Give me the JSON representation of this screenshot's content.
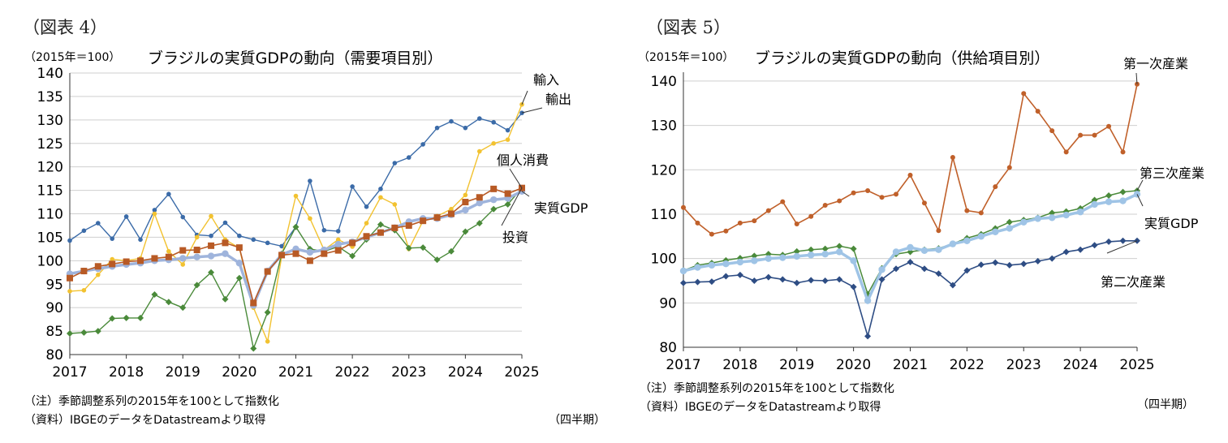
{
  "charts": [
    {
      "fig_label": "（図表 4）",
      "unit": "（2015年＝100）",
      "title": "ブラジルの実質GDPの動向（需要項目別）",
      "note1": "（注）季節調整系列の2015年を100として指数化",
      "note2": "（資料）IBGEのデータをDatastreamより取得",
      "period": "（四半期）"
    },
    {
      "fig_label": "（図表 5）",
      "unit": "（2015年＝100）",
      "title": "ブラジルの実質GDPの動向（供給項目別）",
      "note1": "（注）季節調整系列の2015年を100として指数化",
      "note2": "（資料）IBGEのデータをDatastreamより取得",
      "period": "（四半期）"
    }
  ],
  "chart_data": [
    {
      "type": "line",
      "title": "ブラジルの実質GDPの動向（需要項目別）",
      "ylabel": "（2015年＝100）",
      "xlabel": "（四半期）",
      "ylim": [
        80,
        140
      ],
      "yticks": [
        80,
        85,
        90,
        95,
        100,
        105,
        110,
        115,
        120,
        125,
        130,
        135,
        140
      ],
      "xtick_labels": [
        "2017",
        "2018",
        "2019",
        "2020",
        "2021",
        "2022",
        "2023",
        "2024",
        "2025"
      ],
      "series": [
        {
          "name": "輸出",
          "color": "#3b6ba8",
          "marker": "circle",
          "values": [
            104.3,
            106.4,
            108.0,
            104.7,
            109.4,
            104.5,
            110.8,
            114.2,
            109.3,
            105.5,
            105.3,
            108.1,
            105.3,
            104.5,
            103.8,
            103.1,
            107.2,
            117.0,
            106.5,
            106.3,
            115.8,
            111.5,
            115.3,
            120.8,
            122.0,
            124.8,
            128.3,
            129.7,
            128.3,
            130.3,
            129.5,
            127.8,
            131.5
          ]
        },
        {
          "name": "輸入",
          "color": "#f2c230",
          "marker": "circle",
          "values": [
            93.5,
            93.7,
            97.0,
            100.3,
            100.0,
            100.5,
            110.0,
            102.0,
            99.2,
            105.0,
            109.5,
            104.5,
            102.7,
            90.0,
            82.8,
            101.0,
            113.8,
            109.0,
            102.3,
            104.5,
            103.0,
            108.0,
            113.5,
            112.0,
            102.5,
            108.5,
            109.5,
            111.0,
            114.0,
            123.3,
            125.0,
            125.8,
            133.3
          ]
        },
        {
          "name": "投資",
          "color": "#4a8a3a",
          "marker": "diamond",
          "values": [
            84.5,
            84.7,
            85.0,
            87.7,
            87.8,
            87.8,
            92.8,
            91.2,
            90.0,
            94.8,
            97.5,
            91.8,
            96.3,
            81.3,
            89.0,
            101.5,
            107.2,
            102.5,
            102.0,
            103.0,
            101.0,
            104.5,
            107.7,
            106.5,
            102.7,
            102.8,
            100.2,
            102.0,
            106.2,
            108.0,
            111.0,
            112.0,
            115.5
          ]
        },
        {
          "name": "実質GDP",
          "color": "#9fb4dc",
          "marker": "circle",
          "values": [
            97.2,
            97.8,
            98.3,
            98.8,
            99.2,
            99.5,
            100.0,
            100.2,
            100.5,
            100.8,
            101.0,
            101.5,
            99.5,
            90.5,
            97.8,
            101.3,
            102.5,
            101.8,
            102.3,
            103.5,
            104.0,
            105.0,
            106.0,
            107.0,
            108.3,
            109.0,
            109.0,
            109.8,
            110.8,
            112.3,
            113.0,
            113.3,
            114.8
          ]
        },
        {
          "name": "個人消費",
          "color": "#b85a25",
          "marker": "square",
          "values": [
            96.3,
            97.8,
            98.8,
            99.3,
            99.8,
            100.0,
            100.5,
            100.8,
            102.2,
            102.3,
            103.2,
            103.8,
            102.8,
            91.0,
            97.7,
            101.2,
            101.5,
            100.0,
            101.5,
            102.2,
            103.8,
            105.2,
            106.0,
            107.0,
            107.5,
            108.5,
            109.2,
            110.0,
            112.5,
            113.5,
            115.3,
            114.3,
            115.5
          ]
        }
      ]
    },
    {
      "type": "line",
      "title": "ブラジルの実質GDPの動向（供給項目別）",
      "ylabel": "（2015年＝100）",
      "xlabel": "（四半期）",
      "ylim": [
        80,
        142
      ],
      "yticks": [
        80,
        90,
        100,
        110,
        120,
        130,
        140
      ],
      "xtick_labels": [
        "2017",
        "2018",
        "2019",
        "2020",
        "2021",
        "2022",
        "2023",
        "2024",
        "2025"
      ],
      "series": [
        {
          "name": "第一次産業",
          "color": "#c0602a",
          "marker": "circle",
          "values": [
            111.5,
            108.0,
            105.5,
            106.2,
            108.0,
            108.5,
            110.8,
            112.8,
            107.8,
            109.5,
            112.0,
            113.0,
            114.8,
            115.3,
            113.8,
            114.5,
            118.8,
            112.5,
            106.3,
            122.8,
            110.8,
            110.3,
            116.2,
            120.5,
            137.2,
            133.2,
            128.8,
            124.0,
            127.8,
            127.8,
            129.8,
            124.0,
            139.3
          ]
        },
        {
          "name": "第三次産業",
          "color": "#4a8a3a",
          "marker": "diamond",
          "values": [
            97.3,
            98.5,
            99.0,
            99.6,
            100.1,
            100.6,
            101.0,
            100.8,
            101.6,
            102.0,
            102.2,
            102.8,
            102.2,
            92.0,
            97.8,
            101.0,
            101.5,
            102.0,
            102.3,
            103.3,
            104.6,
            105.5,
            106.8,
            108.2,
            108.7,
            109.2,
            110.3,
            110.6,
            111.3,
            113.2,
            114.2,
            115.0,
            115.3
          ]
        },
        {
          "name": "実質GDP",
          "color": "#9fc4e6",
          "marker": "circle",
          "values": [
            97.2,
            98.0,
            98.5,
            98.8,
            99.2,
            99.5,
            100.0,
            100.2,
            100.5,
            100.8,
            101.0,
            101.5,
            99.5,
            90.5,
            97.5,
            101.5,
            102.5,
            101.8,
            102.0,
            103.3,
            104.0,
            105.0,
            106.0,
            106.8,
            108.2,
            109.0,
            109.2,
            109.8,
            110.5,
            112.2,
            112.8,
            113.0,
            114.5
          ]
        },
        {
          "name": "第二次産業",
          "color": "#2e4d84",
          "marker": "diamond",
          "values": [
            94.5,
            94.7,
            94.8,
            96.0,
            96.3,
            95.0,
            95.8,
            95.3,
            94.5,
            95.1,
            95.0,
            95.3,
            93.6,
            82.5,
            95.3,
            97.7,
            99.2,
            97.7,
            96.6,
            94.0,
            97.3,
            98.6,
            99.1,
            98.5,
            98.8,
            99.4,
            100.0,
            101.5,
            102.0,
            103.0,
            103.8,
            104.0,
            104.0
          ]
        }
      ]
    }
  ]
}
